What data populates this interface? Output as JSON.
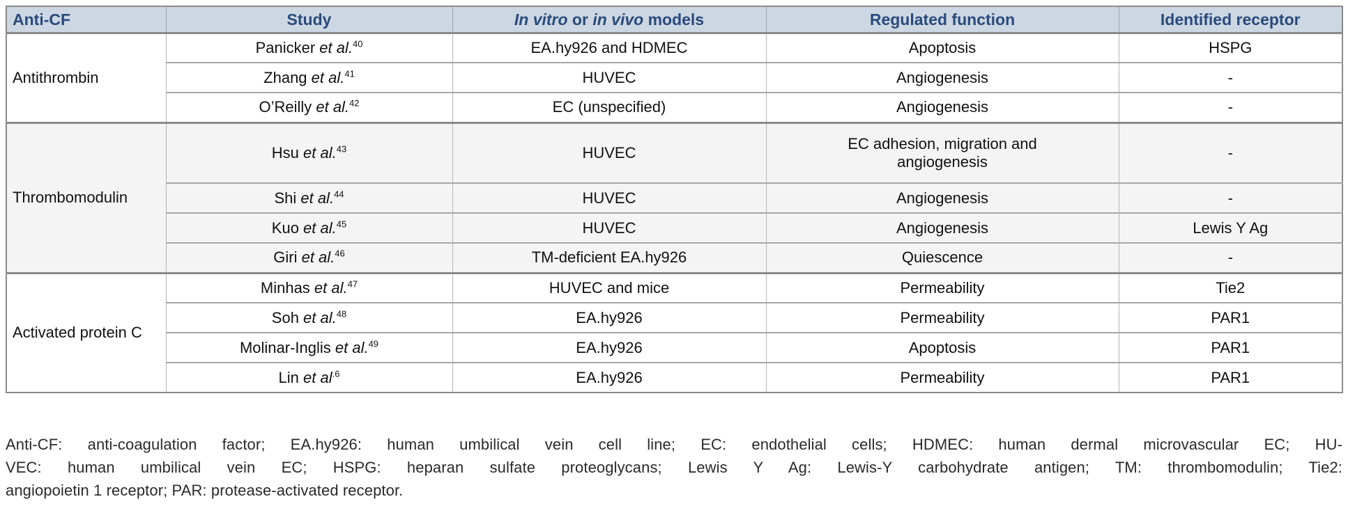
{
  "colors": {
    "header_bg": "#ccd7e3",
    "header_text": "#2a4a7c",
    "section_alt_bg": "#f4f4f4",
    "border_outer": "#8a8a8a",
    "border_inner": "#a6a6a6",
    "border_vertical": "#b5b5b5",
    "cell_text": "#111111",
    "footnote_text": "#2a2a2a"
  },
  "table": {
    "headers": {
      "anti_cf": "Anti-CF",
      "study": "Study",
      "models_italic_1": "In vitro",
      "models_mid": " or ",
      "models_italic_2": "in vivo",
      "models_end": " models",
      "function": "Regulated function",
      "receptor": "Identified receptor"
    },
    "sections": [
      {
        "label": "Antithrombin",
        "rows": [
          {
            "study_name": "Panicker",
            "study_etal": " et al.",
            "study_ref": "40",
            "models": "EA.hy926 and HDMEC",
            "function": "Apoptosis",
            "receptor": "HSPG"
          },
          {
            "study_name": "Zhang",
            "study_etal": " et al.",
            "study_ref": "41",
            "models": "HUVEC",
            "function": "Angiogenesis",
            "receptor": "-"
          },
          {
            "study_name": "O’Reilly",
            "study_etal": " et al.",
            "study_ref": "42",
            "models": "EC (unspecified)",
            "function": "Angiogenesis",
            "receptor": "-"
          }
        ]
      },
      {
        "label": "Thrombomodulin",
        "rows": [
          {
            "study_name": "Hsu",
            "study_etal": " et al.",
            "study_ref": "43",
            "models": "HUVEC",
            "function": "EC adhesion, migration and angiogenesis",
            "receptor": "-"
          },
          {
            "study_name": "Shi",
            "study_etal": " et al.",
            "study_ref": "44",
            "models": "HUVEC",
            "function": "Angiogenesis",
            "receptor": "-"
          },
          {
            "study_name": "Kuo",
            "study_etal": " et al.",
            "study_ref": "45",
            "models": "HUVEC",
            "function": "Angiogenesis",
            "receptor": "Lewis Y Ag"
          },
          {
            "study_name": "Giri",
            "study_etal": " et al.",
            "study_ref": "46",
            "models": "TM-deficient EA.hy926",
            "function": "Quiescence",
            "receptor": "-"
          }
        ]
      },
      {
        "label": "Activated protein C",
        "rows": [
          {
            "study_name": "Minhas",
            "study_etal": " et al.",
            "study_ref": "47",
            "models": "HUVEC and mice",
            "function": "Permeability",
            "receptor": "Tie2"
          },
          {
            "study_name": "Soh",
            "study_etal": " et al.",
            "study_ref": "48",
            "models": "EA.hy926",
            "function": "Permeability",
            "receptor": "PAR1"
          },
          {
            "study_name": "Molinar-Inglis",
            "study_etal": " et al.",
            "study_ref": "49",
            "models": "EA.hy926",
            "function": "Apoptosis",
            "receptor": "PAR1"
          },
          {
            "study_name": "Lin",
            "study_etal": " et al",
            "study_ref": ".6",
            "models": "EA.hy926",
            "function": "Permeability",
            "receptor": "PAR1"
          }
        ]
      }
    ]
  },
  "footnote": {
    "lines": [
      "Anti-CF: anti-coagulation factor; EA.hy926: human umbilical vein cell line; EC: endothelial cells; HDMEC: human dermal microvascular EC; HU-",
      "VEC: human umbilical vein EC; HSPG: heparan sulfate proteoglycans; Lewis Y Ag: Lewis-Y carbohydrate antigen; TM: thrombomodulin; Tie2:",
      "angiopoietin 1 receptor; PAR: protease-activated receptor."
    ]
  }
}
